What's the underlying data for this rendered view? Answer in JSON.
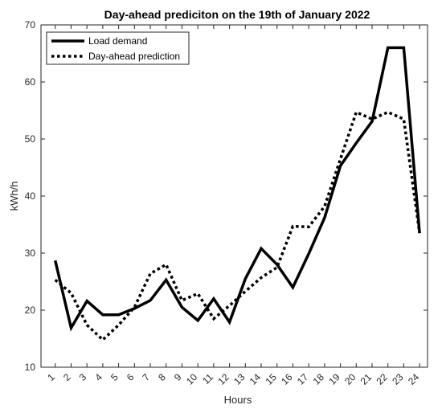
{
  "chart_data": {
    "type": "line",
    "title": "Day-ahead prediciton on the 19th of January 2022",
    "xlabel": "Hours",
    "ylabel": "kWh/h",
    "x": [
      1,
      2,
      3,
      4,
      5,
      6,
      7,
      8,
      9,
      10,
      11,
      12,
      13,
      14,
      15,
      16,
      17,
      18,
      19,
      20,
      21,
      22,
      23,
      24
    ],
    "xlim": [
      0.1,
      24.5
    ],
    "ylim": [
      10,
      70
    ],
    "yticks": [
      10,
      20,
      30,
      40,
      50,
      60,
      70
    ],
    "grid": false,
    "legend_position": "top-left",
    "series": [
      {
        "name": "Load demand",
        "style": "solid",
        "color": "#000000",
        "values": [
          28.7,
          16.9,
          21.6,
          19.2,
          19.2,
          20.3,
          21.7,
          25.3,
          20.5,
          18.2,
          22.0,
          17.9,
          25.5,
          30.8,
          28.0,
          24.0,
          29.9,
          36.2,
          45.3,
          49.3,
          53.1,
          66.0,
          66.0,
          33.5
        ]
      },
      {
        "name": "Day-ahead prediction",
        "style": "dotted",
        "color": "#000000",
        "values": [
          25.3,
          23.0,
          17.4,
          14.8,
          17.4,
          20.5,
          26.4,
          28.0,
          21.7,
          22.9,
          18.5,
          20.8,
          23.3,
          25.7,
          27.5,
          34.7,
          34.6,
          38.2,
          46.5,
          54.7,
          53.5,
          54.7,
          53.5,
          33.5
        ]
      }
    ]
  }
}
